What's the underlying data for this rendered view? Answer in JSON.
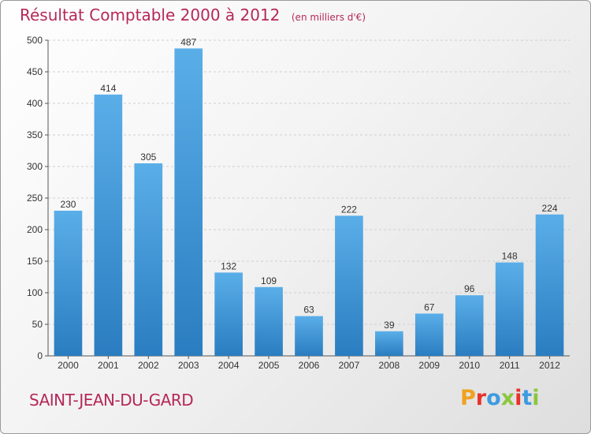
{
  "title": "Résultat Comptable 2000 à 2012",
  "subtitle": "(en milliers d'€)",
  "town": "SAINT-JEAN-DU-GARD",
  "logo": {
    "letters": [
      {
        "char": "P",
        "color": "#f0a21e"
      },
      {
        "char": "r",
        "color": "#e8322b"
      },
      {
        "char": "o",
        "color": "#3d9be0"
      },
      {
        "char": "x",
        "color": "#8cc63e"
      },
      {
        "char": "i",
        "color": "#e8322b"
      },
      {
        "char": "t",
        "color": "#3d9be0"
      },
      {
        "char": "i",
        "color": "#8cc63e"
      }
    ]
  },
  "colors": {
    "accent": "#b5285a",
    "bar_top": "#5aaee8",
    "bar_bottom": "#2a7dc0"
  },
  "chart_data": {
    "type": "bar",
    "categories": [
      "2000",
      "2001",
      "2002",
      "2003",
      "2004",
      "2005",
      "2006",
      "2007",
      "2008",
      "2009",
      "2010",
      "2011",
      "2012"
    ],
    "values": [
      230,
      414,
      305,
      487,
      132,
      109,
      63,
      222,
      39,
      67,
      96,
      148,
      224
    ],
    "ylim": [
      0,
      500
    ],
    "yticks": [
      0,
      50,
      100,
      150,
      200,
      250,
      300,
      350,
      400,
      450,
      500
    ],
    "grid": true
  }
}
